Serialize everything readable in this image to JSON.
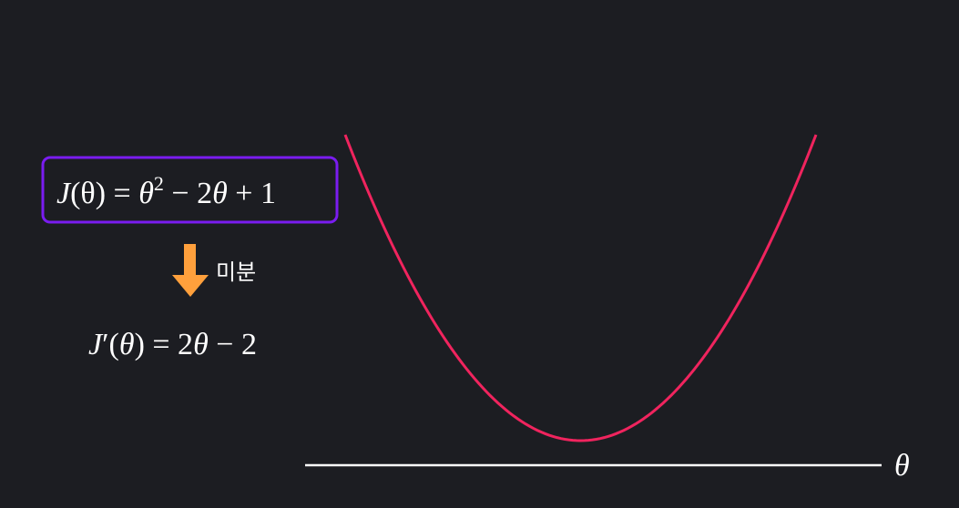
{
  "formula": {
    "function_parts": [
      "J",
      "(θ) = ",
      "θ",
      "2",
      " − 2",
      "θ",
      " + 1"
    ],
    "derivative_parts": [
      "J",
      "′(",
      "θ",
      ") = 2",
      "θ",
      " − 2"
    ],
    "arrow_label": "미분"
  },
  "axis": {
    "label": "θ"
  },
  "curve": {
    "function": "J(θ) = θ^2 − 2θ + 1",
    "theta_range": [
      -0.9,
      2.9
    ],
    "minimum": {
      "theta": 1,
      "J": 0
    }
  },
  "colors": {
    "background": "#1c1d22",
    "curve": "#f0245e",
    "box_border": "#7a1cf0",
    "arrow": "#ffa03c",
    "axis": "#ffffff",
    "text": "#ffffff"
  }
}
